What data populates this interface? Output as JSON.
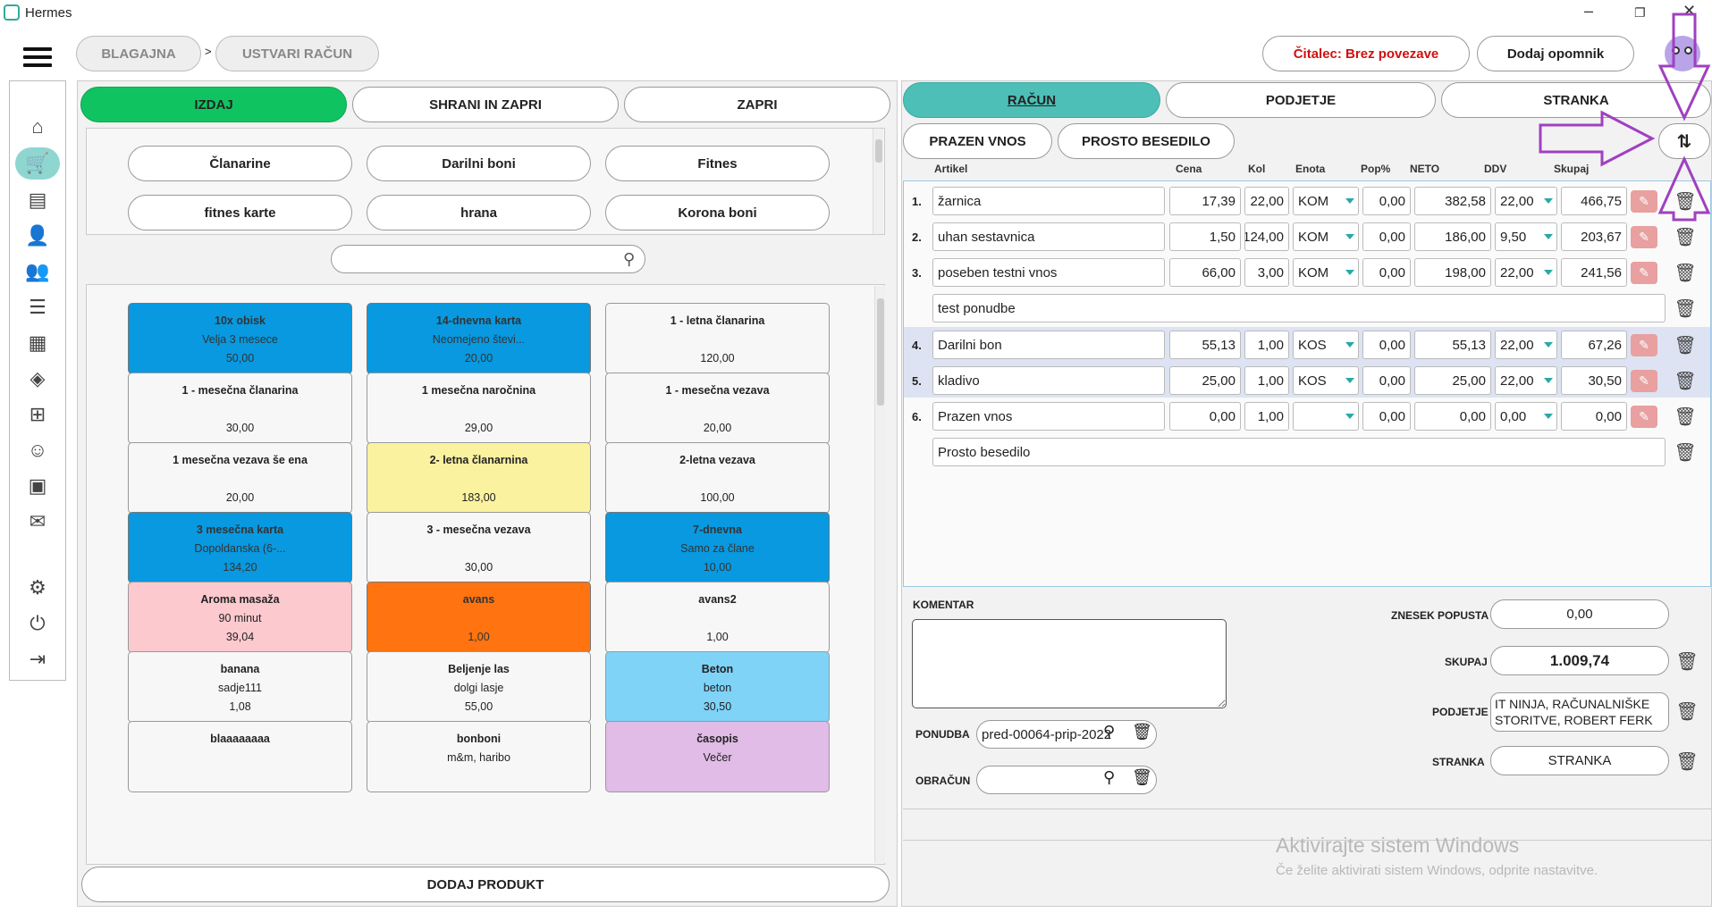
{
  "window": {
    "title": "Hermes",
    "icon": "app-icon"
  },
  "breadcrumb": {
    "items": [
      "BLAGAJNA",
      "USTVARI RAČUN"
    ],
    "separator": ">"
  },
  "header": {
    "reader_status": "Čitalec: Brez povezave",
    "add_reminder": "Dodaj opomnik"
  },
  "nav": {
    "icons": [
      "home-icon",
      "cart-icon",
      "document-icon",
      "user-icon",
      "users-icon",
      "list-icon",
      "calendar-icon",
      "layers-icon",
      "network-icon",
      "worker-icon",
      "briefcase-icon",
      "chat-icon",
      "gear-icon",
      "power-icon",
      "logout-icon"
    ]
  },
  "left": {
    "actions": [
      "IZDAJ",
      "SHRANI IN ZAPRI",
      "ZAPRI"
    ],
    "categories": [
      "Članarine",
      "Darilni boni",
      "Fitnes",
      "fitnes karte",
      "hrana",
      "Korona boni"
    ],
    "search_placeholder": "",
    "products": [
      {
        "name": "10x obisk",
        "sub": "Velja 3 mesece",
        "price": "50,00",
        "color": "#0899e0"
      },
      {
        "name": "14-dnevna karta",
        "sub": "Neomejeno števi...",
        "price": "20,00",
        "color": "#0899e0"
      },
      {
        "name": "1 - letna članarina",
        "sub": "",
        "price": "120,00",
        "color": "#f7f7f7"
      },
      {
        "name": "1 - mesečna članarina",
        "sub": "",
        "price": "30,00",
        "color": "#f7f7f7"
      },
      {
        "name": "1 mesečna naročnina",
        "sub": "",
        "price": "29,00",
        "color": "#f7f7f7"
      },
      {
        "name": "1 - mesečna vezava",
        "sub": "",
        "price": "20,00",
        "color": "#f7f7f7"
      },
      {
        "name": "1 mesečna vezava še ena",
        "sub": "",
        "price": "20,00",
        "color": "#f7f7f7"
      },
      {
        "name": "2- letna članarnina",
        "sub": "",
        "price": "183,00",
        "color": "#fbf2a0"
      },
      {
        "name": "2-letna vezava",
        "sub": "",
        "price": "100,00",
        "color": "#f7f7f7"
      },
      {
        "name": "3 mesečna karta",
        "sub": "Dopoldanska (6-...",
        "price": "134,20",
        "color": "#0899e0"
      },
      {
        "name": "3 - mesečna vezava",
        "sub": "",
        "price": "30,00",
        "color": "#f7f7f7"
      },
      {
        "name": "7-dnevna",
        "sub": "Samo za člane",
        "price": "10,00",
        "color": "#0899e0"
      },
      {
        "name": "Aroma masaža",
        "sub": "90 minut",
        "price": "39,04",
        "color": "#fcc9cf"
      },
      {
        "name": "avans",
        "sub": "",
        "price": "1,00",
        "color": "#ff7410"
      },
      {
        "name": "avans2",
        "sub": "",
        "price": "1,00",
        "color": "#f7f7f7"
      },
      {
        "name": "banana",
        "sub": "sadje111",
        "price": "1,08",
        "color": "#f7f7f7"
      },
      {
        "name": "Beljenje las",
        "sub": "dolgi lasje",
        "price": "55,00",
        "color": "#f7f7f7"
      },
      {
        "name": "Beton",
        "sub": "beton",
        "price": "30,50",
        "color": "#7fd3f7"
      },
      {
        "name": "blaaaaaaaa",
        "sub": "",
        "price": "",
        "color": "#f7f7f7"
      },
      {
        "name": "bonboni",
        "sub": "m&m, haribo",
        "price": "",
        "color": "#f7f7f7"
      },
      {
        "name": "časopis",
        "sub": "Večer",
        "price": "",
        "color": "#e0bce6"
      }
    ],
    "add_product": "DODAJ PRODUKT"
  },
  "right": {
    "tabs": [
      "RAČUN",
      "PODJETJE",
      "STRANKA"
    ],
    "buttons": {
      "empty_entry": "PRAZEN VNOS",
      "free_text": "PROSTO BESEDILO"
    },
    "columns": [
      "Artikel",
      "Cena",
      "Kol",
      "Enota",
      "Pop%",
      "NETO",
      "DDV",
      "Skupaj"
    ],
    "rows": [
      {
        "num": "1.",
        "article": "žarnica",
        "price": "17,39",
        "qty": "22,00",
        "unit": "KOM",
        "disc": "0,00",
        "net": "382,58",
        "vat": "22,00",
        "total": "466,75"
      },
      {
        "num": "2.",
        "article": "uhan sestavnica",
        "price": "1,50",
        "qty": "124,00",
        "unit": "KOM",
        "disc": "0,00",
        "net": "186,00",
        "vat": "9,50",
        "total": "203,67"
      },
      {
        "num": "3.",
        "article": "poseben testni vnos",
        "price": "66,00",
        "qty": "3,00",
        "unit": "KOM",
        "disc": "0,00",
        "net": "198,00",
        "vat": "22,00",
        "total": "241,56"
      },
      {
        "num": "4.",
        "article": "Darilni bon",
        "price": "55,13",
        "qty": "1,00",
        "unit": "KOS",
        "disc": "0,00",
        "net": "55,13",
        "vat": "22,00",
        "total": "67,26"
      },
      {
        "num": "5.",
        "article": "kladivo",
        "price": "25,00",
        "qty": "1,00",
        "unit": "KOS",
        "disc": "0,00",
        "net": "25,00",
        "vat": "22,00",
        "total": "30,50"
      },
      {
        "num": "6.",
        "article": "Prazen vnos",
        "price": "0,00",
        "qty": "1,00",
        "unit": "",
        "disc": "0,00",
        "net": "0,00",
        "vat": "0,00",
        "total": "0,00"
      }
    ],
    "text_rows": [
      "test ponudbe",
      "Prosto besedilo"
    ],
    "comment_label": "KOMENTAR",
    "offer_label": "PONUDBA",
    "offer_value": "pred-00064-prip-2022",
    "invoice_label": "OBRAČUN",
    "invoice_value": "",
    "discount_label": "ZNESEK POPUSTA",
    "discount_value": "0,00",
    "total_label": "SKUPAJ",
    "total_value": "1.009,74",
    "company_label": "PODJETJE",
    "company_value": "IT NINJA, RAČUNALNIŠKE STORITVE, ROBERT FERK",
    "customer_label": "STRANKA",
    "customer_value": "STRANKA"
  },
  "watermark": {
    "line1": "Aktivirajte sistem Windows",
    "line2": "Če želite aktivirati sistem Windows, odprite nastavitve."
  },
  "annotation_color": "#a040c0"
}
